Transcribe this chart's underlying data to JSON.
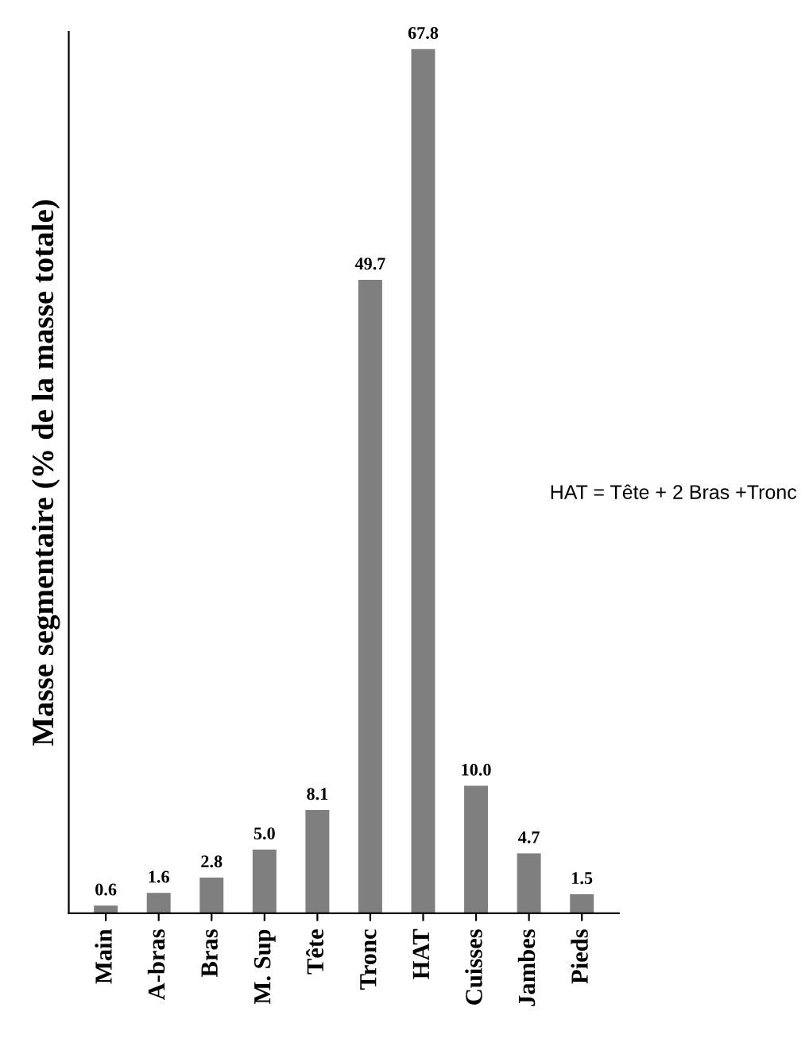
{
  "chart_data": {
    "type": "bar",
    "ylabel": "Masse segmentaire (% de la masse totale)",
    "categories": [
      "Main",
      "A-bras",
      "Bras",
      "M. Sup",
      "Tête",
      "Tronc",
      "HAT",
      "Cuisses",
      "Jambes",
      "Pieds"
    ],
    "values": [
      0.6,
      1.6,
      2.8,
      5.0,
      8.1,
      49.7,
      67.8,
      10.0,
      4.7,
      1.5
    ],
    "value_labels": [
      "0.6",
      "1.6",
      "2.8",
      "5.0",
      "8.1",
      "49.7",
      "67.8",
      "10.0",
      "4.7",
      "1.5"
    ],
    "color": "#7f7f7f",
    "grid": false,
    "legend": false,
    "annotations": [
      "HAT = Tête + 2 Bras +Tronc"
    ]
  }
}
